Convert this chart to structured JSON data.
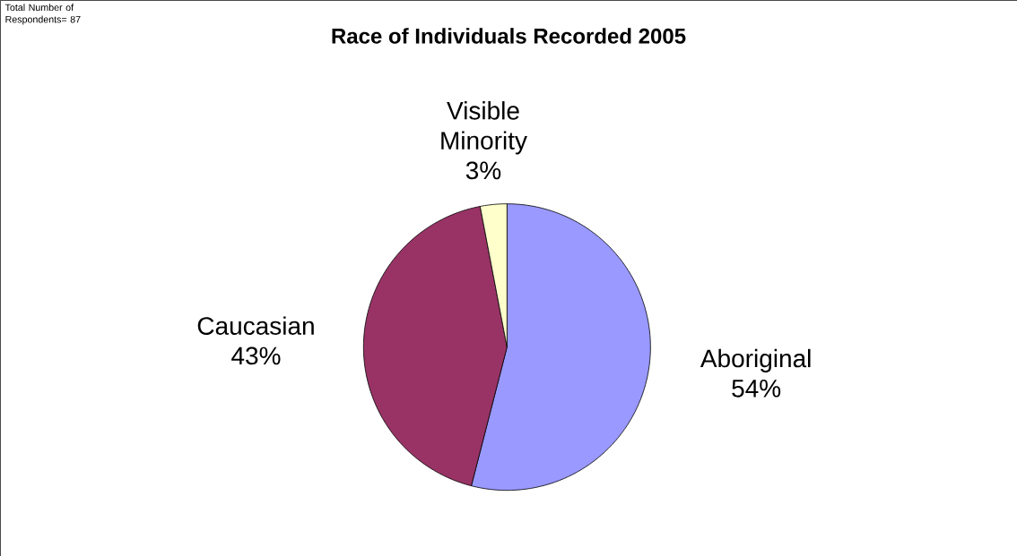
{
  "chart_data": {
    "type": "pie",
    "title": "Race of Individuals Recorded 2005",
    "annotations": [
      "Total Number of Respondents= 87"
    ],
    "categories": [
      "Aboriginal",
      "Caucasian",
      "Visible Minority"
    ],
    "values": [
      54,
      43,
      3
    ],
    "colors": [
      "#9999ff",
      "#993366",
      "#ffffcc"
    ],
    "value_labels": [
      "54%",
      "43%",
      "3%"
    ]
  }
}
